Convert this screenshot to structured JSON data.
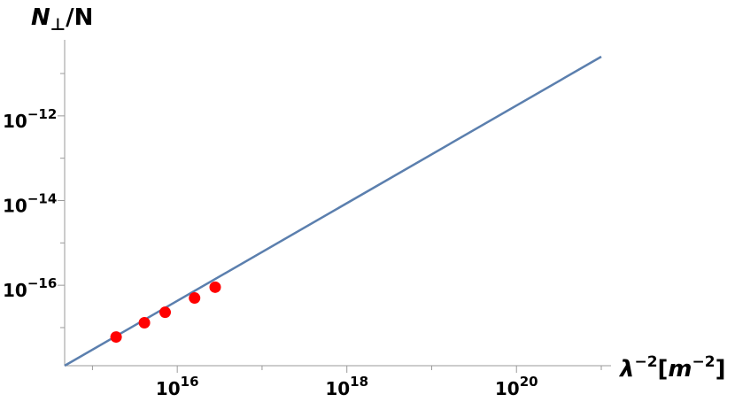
{
  "chart_data": {
    "type": "line",
    "x_scale": "log",
    "y_scale": "log",
    "xlim": [
      470000000000000.0,
      1e+21
    ],
    "ylim": [
      1.26e-18,
      2.5e-11
    ],
    "ylabel": {
      "main": "N",
      "sub": "⊥",
      "tail": "/N"
    },
    "xlabel": {
      "base": "λ",
      "sup1": "−2",
      "mid": "[",
      "unit": "m",
      "sup2": "−2",
      "end": "]"
    },
    "x_ticks": [
      {
        "value": 1e+16,
        "base": "10",
        "exp": "16"
      },
      {
        "value": 1e+18,
        "base": "10",
        "exp": "18"
      },
      {
        "value": 1e+20,
        "base": "10",
        "exp": "20"
      }
    ],
    "y_ticks": [
      {
        "value": 1e-12,
        "base": "10",
        "exp": "−12"
      },
      {
        "value": 1e-14,
        "base": "10",
        "exp": "−14"
      },
      {
        "value": 1e-16,
        "base": "10",
        "exp": "−16"
      }
    ],
    "x_minor_ticks": [
      1000000000000000.0,
      1e+17,
      1e+19,
      1e+21
    ],
    "y_minor_ticks": [
      1e-17,
      1e-15,
      1e-13,
      1e-11
    ],
    "series": [
      {
        "kind": "line",
        "color": "#5b7fae",
        "x": [
          470000000000000.0,
          1e+21
        ],
        "y": [
          1.26e-18,
          2.5e-11
        ]
      },
      {
        "kind": "scatter",
        "color": "#ff0000",
        "x": [
          1900000000000000.0,
          4100000000000000.0,
          7200000000000000.0,
          1.6e+16,
          2.8e+16
        ],
        "y": [
          6e-18,
          1.3e-17,
          2.3e-17,
          5e-17,
          9e-17
        ]
      }
    ]
  }
}
